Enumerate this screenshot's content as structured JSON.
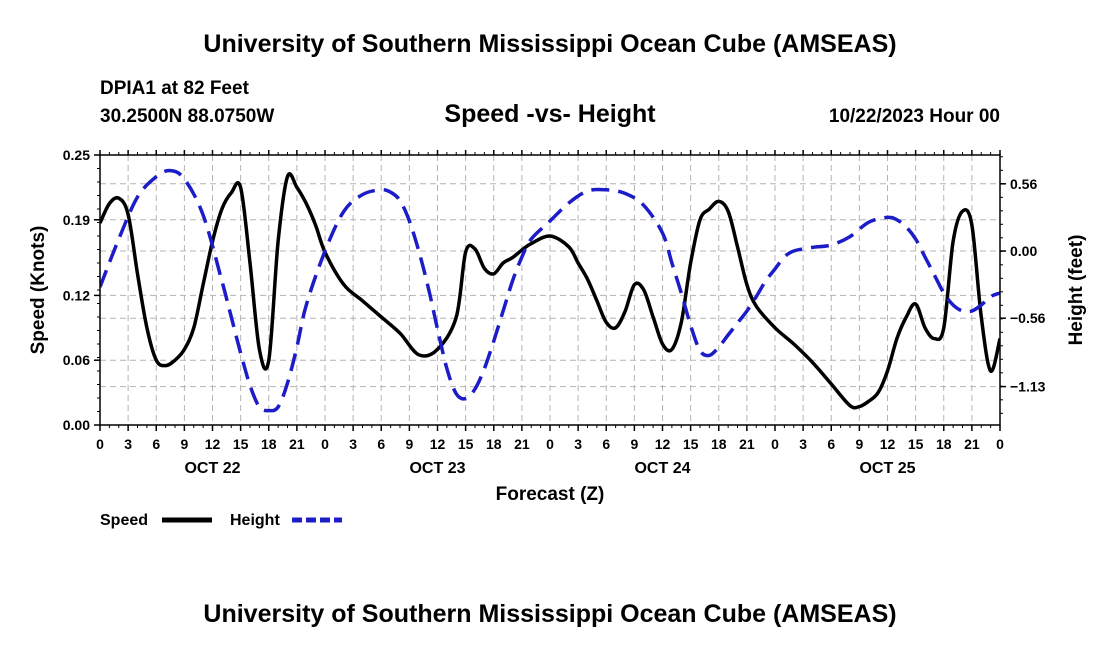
{
  "header": {
    "title": "University of Southern Mississippi Ocean Cube (AMSEAS)",
    "station": "DPIA1 at 82 Feet",
    "coords": "30.2500N  88.0750W",
    "subtitle": "Speed -vs- Height",
    "datetime": "10/22/2023 Hour 00"
  },
  "footer": {
    "title": "University of Southern Mississippi Ocean Cube (AMSEAS)"
  },
  "chart_data": {
    "type": "line",
    "title": "Speed -vs- Height",
    "xlabel": "Forecast (Z)",
    "ylabel": "Speed (Knots)",
    "y2label": "Height (feet)",
    "xlim": [
      0,
      96
    ],
    "ylim": [
      0,
      0.25
    ],
    "y2lim": [
      -1.45,
      0.8
    ],
    "grid": true,
    "x_ticks": [
      0,
      3,
      6,
      9,
      12,
      15,
      18,
      21,
      24,
      27,
      30,
      33,
      36,
      39,
      42,
      45,
      48,
      51,
      54,
      57,
      60,
      63,
      66,
      69,
      72,
      75,
      78,
      81,
      84,
      87,
      90,
      93,
      96
    ],
    "x_tick_labels": [
      "0",
      "3",
      "6",
      "9",
      "12",
      "15",
      "18",
      "21",
      "0",
      "3",
      "6",
      "9",
      "12",
      "15",
      "18",
      "21",
      "0",
      "3",
      "6",
      "9",
      "12",
      "15",
      "18",
      "21",
      "0",
      "3",
      "6",
      "9",
      "12",
      "15",
      "18",
      "21",
      "0"
    ],
    "date_labels": [
      {
        "x": 12,
        "label": "OCT 22"
      },
      {
        "x": 36,
        "label": "OCT 23"
      },
      {
        "x": 60,
        "label": "OCT 24"
      },
      {
        "x": 84,
        "label": "OCT 25"
      }
    ],
    "y_ticks": [
      0.0,
      0.06,
      0.12,
      0.19,
      0.25
    ],
    "y_tick_labels": [
      "0.00",
      "0.06",
      "0.12",
      "0.19",
      "0.25"
    ],
    "y2_ticks": [
      0.56,
      0.0,
      -0.56,
      -1.13
    ],
    "y2_tick_labels": [
      "0.56",
      "0.00",
      "−0.56",
      "−1.13"
    ],
    "legend": [
      {
        "label": "Speed",
        "color": "#000000",
        "style": "solid"
      },
      {
        "label": "Height",
        "color": "#1c1cc8",
        "style": "dashed"
      }
    ],
    "series": [
      {
        "name": "Speed",
        "axis": "left",
        "color": "#000000",
        "style": "solid",
        "x": [
          0,
          1,
          2,
          3,
          4,
          5,
          6,
          7,
          8,
          9,
          10,
          11,
          12,
          13,
          14,
          15,
          16,
          17,
          18,
          19,
          20,
          21,
          22,
          23,
          24,
          26,
          28,
          30,
          32,
          34,
          36,
          38,
          39,
          40,
          41,
          42,
          43,
          44,
          45,
          46,
          48,
          50,
          51,
          52,
          53,
          54,
          55,
          56,
          57,
          58,
          59,
          60,
          61,
          62,
          63,
          64,
          65,
          66,
          67,
          68,
          69,
          70,
          72,
          74,
          76,
          78,
          80,
          81,
          82,
          83,
          84,
          85,
          86,
          87,
          88,
          89,
          90,
          91,
          92,
          93,
          94,
          95,
          96
        ],
        "values": [
          0.187,
          0.205,
          0.21,
          0.195,
          0.14,
          0.09,
          0.06,
          0.055,
          0.06,
          0.07,
          0.09,
          0.13,
          0.17,
          0.2,
          0.215,
          0.22,
          0.15,
          0.07,
          0.06,
          0.17,
          0.23,
          0.22,
          0.205,
          0.185,
          0.16,
          0.13,
          0.115,
          0.1,
          0.085,
          0.065,
          0.07,
          0.1,
          0.16,
          0.163,
          0.145,
          0.14,
          0.15,
          0.155,
          0.162,
          0.168,
          0.175,
          0.165,
          0.15,
          0.135,
          0.115,
          0.095,
          0.09,
          0.105,
          0.13,
          0.125,
          0.1,
          0.075,
          0.07,
          0.095,
          0.15,
          0.19,
          0.2,
          0.207,
          0.198,
          0.165,
          0.13,
          0.11,
          0.09,
          0.075,
          0.058,
          0.038,
          0.018,
          0.017,
          0.022,
          0.03,
          0.05,
          0.08,
          0.1,
          0.112,
          0.09,
          0.08,
          0.09,
          0.17,
          0.198,
          0.185,
          0.1,
          0.05,
          0.08
        ]
      },
      {
        "name": "Height",
        "axis": "right",
        "color": "#1c1cc8",
        "style": "dashed",
        "x": [
          0,
          2,
          4,
          6,
          7.5,
          9,
          11,
          13,
          14,
          15,
          16,
          17,
          18,
          19,
          20,
          21,
          22,
          24,
          26,
          28,
          30,
          31,
          32,
          33,
          34,
          35,
          36,
          37,
          38,
          39,
          40,
          41,
          42,
          43,
          44,
          45,
          46,
          48,
          50,
          52,
          54,
          56,
          58,
          60,
          61,
          62,
          63,
          64,
          65,
          66,
          67,
          68,
          69,
          70,
          71,
          72,
          73,
          74,
          76,
          78,
          80,
          82,
          84,
          85,
          86,
          87,
          88,
          89,
          90,
          91,
          92,
          93,
          94,
          95,
          96
        ],
        "values": [
          -0.3,
          0.1,
          0.45,
          0.62,
          0.67,
          0.6,
          0.3,
          -0.25,
          -0.55,
          -0.85,
          -1.12,
          -1.3,
          -1.33,
          -1.3,
          -1.1,
          -0.8,
          -0.45,
          0.0,
          0.33,
          0.47,
          0.51,
          0.49,
          0.42,
          0.25,
          0.0,
          -0.3,
          -0.65,
          -0.98,
          -1.19,
          -1.23,
          -1.15,
          -0.98,
          -0.75,
          -0.5,
          -0.25,
          -0.05,
          0.1,
          0.25,
          0.4,
          0.5,
          0.51,
          0.48,
          0.38,
          0.15,
          -0.1,
          -0.35,
          -0.62,
          -0.83,
          -0.87,
          -0.8,
          -0.7,
          -0.6,
          -0.5,
          -0.38,
          -0.25,
          -0.15,
          -0.05,
          0.0,
          0.03,
          0.05,
          0.12,
          0.24,
          0.28,
          0.26,
          0.2,
          0.1,
          -0.05,
          -0.2,
          -0.35,
          -0.45,
          -0.5,
          -0.5,
          -0.45,
          -0.38,
          -0.35
        ]
      }
    ]
  }
}
